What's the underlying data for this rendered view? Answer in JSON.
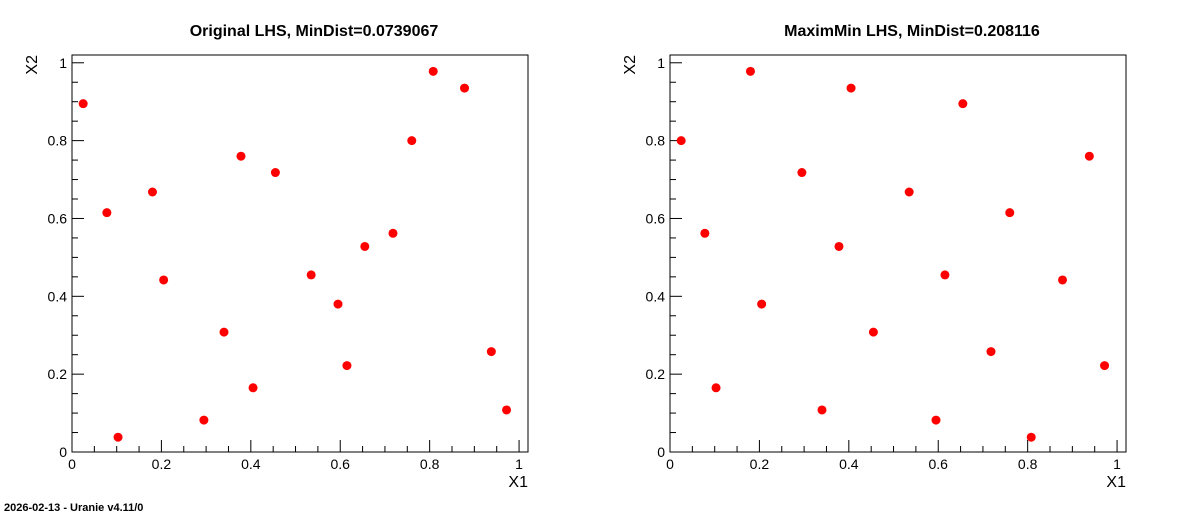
{
  "footer": "2026-02-13 - Uranie v4.11/0",
  "colors": {
    "marker": "#ff0000",
    "axis": "#000000",
    "background": "#ffffff"
  },
  "chart_data": [
    {
      "type": "scatter",
      "title": "Original LHS, MinDist=0.0739067",
      "xlabel": "X1",
      "ylabel": "X2",
      "xlim": [
        0,
        1.02
      ],
      "ylim": [
        0,
        1.02
      ],
      "xticks": [
        "0",
        "0.2",
        "0.4",
        "0.6",
        "0.8",
        "1"
      ],
      "yticks": [
        "0",
        "0.2",
        "0.4",
        "0.6",
        "0.8",
        "1"
      ],
      "grid": false,
      "points": [
        {
          "x": 0.025,
          "y": 0.895
        },
        {
          "x": 0.078,
          "y": 0.615
        },
        {
          "x": 0.103,
          "y": 0.038
        },
        {
          "x": 0.18,
          "y": 0.668
        },
        {
          "x": 0.205,
          "y": 0.442
        },
        {
          "x": 0.295,
          "y": 0.082
        },
        {
          "x": 0.34,
          "y": 0.308
        },
        {
          "x": 0.378,
          "y": 0.76
        },
        {
          "x": 0.405,
          "y": 0.165
        },
        {
          "x": 0.455,
          "y": 0.718
        },
        {
          "x": 0.535,
          "y": 0.455
        },
        {
          "x": 0.595,
          "y": 0.38
        },
        {
          "x": 0.615,
          "y": 0.222
        },
        {
          "x": 0.655,
          "y": 0.528
        },
        {
          "x": 0.718,
          "y": 0.562
        },
        {
          "x": 0.76,
          "y": 0.8
        },
        {
          "x": 0.808,
          "y": 0.978
        },
        {
          "x": 0.878,
          "y": 0.935
        },
        {
          "x": 0.938,
          "y": 0.258
        },
        {
          "x": 0.972,
          "y": 0.108
        }
      ]
    },
    {
      "type": "scatter",
      "title": "MaximMin LHS, MinDist=0.208116",
      "xlabel": "X1",
      "ylabel": "X2",
      "xlim": [
        0,
        1.02
      ],
      "ylim": [
        0,
        1.02
      ],
      "xticks": [
        "0",
        "0.2",
        "0.4",
        "0.6",
        "0.8",
        "1"
      ],
      "yticks": [
        "0",
        "0.2",
        "0.4",
        "0.6",
        "0.8",
        "1"
      ],
      "grid": false,
      "points": [
        {
          "x": 0.025,
          "y": 0.8
        },
        {
          "x": 0.078,
          "y": 0.562
        },
        {
          "x": 0.103,
          "y": 0.165
        },
        {
          "x": 0.18,
          "y": 0.978
        },
        {
          "x": 0.205,
          "y": 0.38
        },
        {
          "x": 0.295,
          "y": 0.718
        },
        {
          "x": 0.34,
          "y": 0.108
        },
        {
          "x": 0.378,
          "y": 0.528
        },
        {
          "x": 0.405,
          "y": 0.935
        },
        {
          "x": 0.455,
          "y": 0.308
        },
        {
          "x": 0.535,
          "y": 0.668
        },
        {
          "x": 0.595,
          "y": 0.082
        },
        {
          "x": 0.615,
          "y": 0.455
        },
        {
          "x": 0.655,
          "y": 0.895
        },
        {
          "x": 0.718,
          "y": 0.258
        },
        {
          "x": 0.76,
          "y": 0.615
        },
        {
          "x": 0.808,
          "y": 0.038
        },
        {
          "x": 0.878,
          "y": 0.442
        },
        {
          "x": 0.938,
          "y": 0.76
        },
        {
          "x": 0.972,
          "y": 0.222
        }
      ]
    }
  ]
}
